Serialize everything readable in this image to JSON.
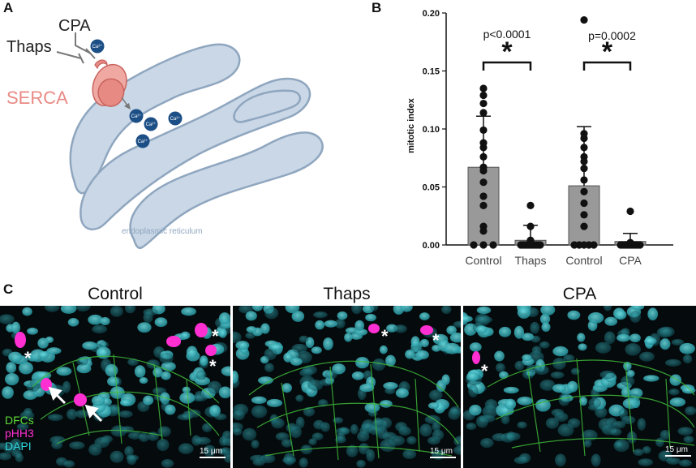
{
  "panel_a": {
    "letter": "A",
    "labels": {
      "cpa": "CPA",
      "thaps": "Thaps",
      "serca": "SERCA",
      "er": "endoplasmic reticulum",
      "ion": "Ca²⁺"
    },
    "colors": {
      "er_fill": "#c9d7e6",
      "er_stroke": "#8fa6bf",
      "serca": "#e88a84",
      "ion": "#1c4f86"
    }
  },
  "panel_b": {
    "letter": "B",
    "ylabel": "mitotic index",
    "pvalues": [
      "p<0.0001",
      "p=0.0002"
    ],
    "sig_mark": "*"
  },
  "chart_data": {
    "type": "bar",
    "categories": [
      "Control",
      "Thaps",
      "Control",
      "CPA"
    ],
    "ylabel": "mitotic index",
    "ylim": [
      0,
      0.2
    ],
    "yticks": [
      "0.00",
      "0.05",
      "0.10",
      "0.15",
      "0.20"
    ],
    "bar_means": [
      0.067,
      0.004,
      0.051,
      0.003
    ],
    "sd_upper": [
      0.111,
      0.017,
      0.102,
      0.01
    ],
    "points": [
      [
        0,
        0,
        0,
        0.012,
        0.016,
        0.034,
        0.042,
        0.054,
        0.064,
        0.067,
        0.076,
        0.084,
        0.088,
        0.099,
        0.114,
        0.122,
        0.129,
        0.135
      ],
      [
        0,
        0,
        0,
        0,
        0,
        0,
        0,
        0,
        0,
        0,
        0,
        0.002,
        0.004,
        0.016,
        0.034
      ],
      [
        0,
        0,
        0,
        0,
        0,
        0.016,
        0.026,
        0.036,
        0.046,
        0.056,
        0.066,
        0.072,
        0.076,
        0.084,
        0.092,
        0.096,
        0.194
      ],
      [
        0,
        0,
        0,
        0,
        0,
        0,
        0,
        0,
        0,
        0,
        0,
        0.002,
        0.029
      ]
    ],
    "comparisons": [
      {
        "groups": [
          0,
          1
        ],
        "label": "p<0.0001"
      },
      {
        "groups": [
          2,
          3
        ],
        "label": "p=0.0002"
      }
    ],
    "bar_color": "#999999"
  },
  "panel_c": {
    "letter": "C",
    "titles": [
      "Control",
      "Thaps",
      "CPA"
    ],
    "legend": [
      {
        "text": "DFCs",
        "color": "#5fdc3a"
      },
      {
        "text": "pHH3",
        "color": "#ff2fd2"
      },
      {
        "text": "DAPI",
        "color": "#2fd7de"
      }
    ],
    "scale_label": "15 μm",
    "asterisk": "*"
  }
}
